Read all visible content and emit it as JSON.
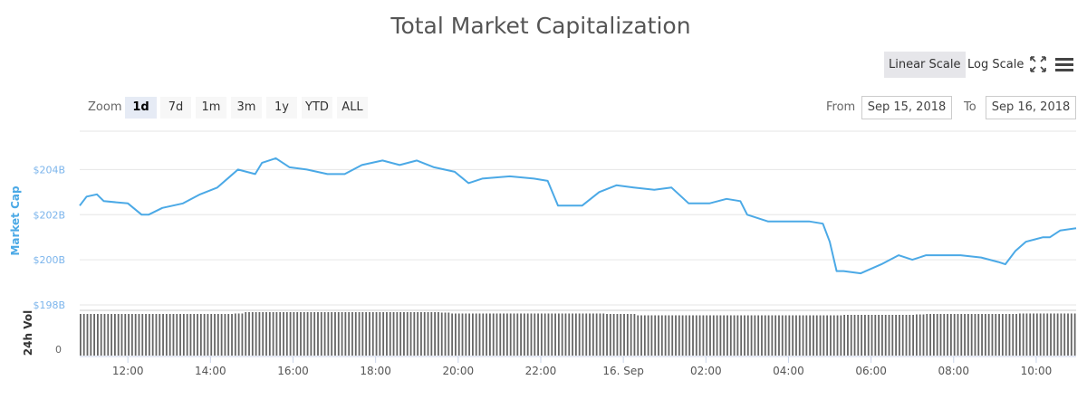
{
  "title": "Total Market Capitalization",
  "toolbar": {
    "linear_scale": "Linear Scale",
    "log_scale": "Log Scale",
    "fullscreen_icon": "fullscreen-icon",
    "menu_icon": "hamburger-menu-icon",
    "active_scale": "linear"
  },
  "zoom": {
    "label": "Zoom",
    "buttons": [
      "1d",
      "7d",
      "1m",
      "3m",
      "1y",
      "YTD",
      "ALL"
    ],
    "active": "1d"
  },
  "range": {
    "from_label": "From",
    "from_value": "Sep 15, 2018",
    "to_label": "To",
    "to_value": "Sep 16, 2018"
  },
  "chart_data": {
    "type": "line",
    "title": "Total Market Capitalization",
    "colors": {
      "line": "#4ba9e6",
      "volume": "#666666",
      "axis_label": "#4ba9e6"
    },
    "ylabel": "Market Cap",
    "y_ticks": [
      "$204B",
      "$202B",
      "$200B",
      "$198B"
    ],
    "y_tick_values": [
      204,
      202,
      200,
      198
    ],
    "ylim": [
      198,
      205.7
    ],
    "x_ticks": [
      "12:00",
      "14:00",
      "16:00",
      "18:00",
      "20:00",
      "22:00",
      "16. Sep",
      "02:00",
      "04:00",
      "06:00",
      "08:00",
      "10:00"
    ],
    "x_tick_times": [
      "2018-09-15 12:00",
      "2018-09-15 14:00",
      "2018-09-15 16:00",
      "2018-09-15 18:00",
      "2018-09-15 20:00",
      "2018-09-15 22:00",
      "2018-09-16 00:00",
      "2018-09-16 02:00",
      "2018-09-16 04:00",
      "2018-09-16 06:00",
      "2018-09-16 08:00",
      "2018-09-16 10:00"
    ],
    "xlim": [
      "2018-09-15 10:50",
      "2018-09-16 10:58"
    ],
    "grid": true,
    "series": [
      {
        "unit": "billion USD",
        "points": [
          [
            "2018-09-15 10:50",
            202.4
          ],
          [
            "2018-09-15 11:00",
            202.8
          ],
          [
            "2018-09-15 11:15",
            202.9
          ],
          [
            "2018-09-15 11:25",
            202.6
          ],
          [
            "2018-09-15 12:00",
            202.5
          ],
          [
            "2018-09-15 12:20",
            202.0
          ],
          [
            "2018-09-15 12:30",
            202.0
          ],
          [
            "2018-09-15 12:50",
            202.3
          ],
          [
            "2018-09-15 13:20",
            202.5
          ],
          [
            "2018-09-15 13:45",
            202.9
          ],
          [
            "2018-09-15 14:10",
            203.2
          ],
          [
            "2018-09-15 14:40",
            204.0
          ],
          [
            "2018-09-15 15:05",
            203.8
          ],
          [
            "2018-09-15 15:15",
            204.3
          ],
          [
            "2018-09-15 15:35",
            204.5
          ],
          [
            "2018-09-15 15:55",
            204.1
          ],
          [
            "2018-09-15 16:20",
            204.0
          ],
          [
            "2018-09-15 16:50",
            203.8
          ],
          [
            "2018-09-15 17:15",
            203.8
          ],
          [
            "2018-09-15 17:40",
            204.2
          ],
          [
            "2018-09-15 18:10",
            204.4
          ],
          [
            "2018-09-15 18:35",
            204.2
          ],
          [
            "2018-09-15 19:00",
            204.4
          ],
          [
            "2018-09-15 19:25",
            204.1
          ],
          [
            "2018-09-15 19:55",
            203.9
          ],
          [
            "2018-09-15 20:15",
            203.4
          ],
          [
            "2018-09-15 20:35",
            203.6
          ],
          [
            "2018-09-15 21:15",
            203.7
          ],
          [
            "2018-09-15 21:50",
            203.6
          ],
          [
            "2018-09-15 22:10",
            203.5
          ],
          [
            "2018-09-15 22:25",
            202.4
          ],
          [
            "2018-09-15 23:00",
            202.4
          ],
          [
            "2018-09-15 23:25",
            203.0
          ],
          [
            "2018-09-15 23:50",
            203.3
          ],
          [
            "2018-09-16 00:15",
            203.2
          ],
          [
            "2018-09-16 00:45",
            203.1
          ],
          [
            "2018-09-16 01:10",
            203.2
          ],
          [
            "2018-09-16 01:35",
            202.5
          ],
          [
            "2018-09-16 02:05",
            202.5
          ],
          [
            "2018-09-16 02:30",
            202.7
          ],
          [
            "2018-09-16 02:50",
            202.6
          ],
          [
            "2018-09-16 03:00",
            202.0
          ],
          [
            "2018-09-16 03:30",
            201.7
          ],
          [
            "2018-09-16 04:00",
            201.7
          ],
          [
            "2018-09-16 04:30",
            201.7
          ],
          [
            "2018-09-16 04:50",
            201.6
          ],
          [
            "2018-09-16 05:00",
            200.8
          ],
          [
            "2018-09-16 05:10",
            199.5
          ],
          [
            "2018-09-16 05:20",
            199.5
          ],
          [
            "2018-09-16 05:45",
            199.4
          ],
          [
            "2018-09-16 06:15",
            199.8
          ],
          [
            "2018-09-16 06:40",
            200.2
          ],
          [
            "2018-09-16 07:00",
            200.0
          ],
          [
            "2018-09-16 07:20",
            200.2
          ],
          [
            "2018-09-16 07:45",
            200.2
          ],
          [
            "2018-09-16 08:10",
            200.2
          ],
          [
            "2018-09-16 08:40",
            200.1
          ],
          [
            "2018-09-16 09:05",
            199.9
          ],
          [
            "2018-09-16 09:15",
            199.8
          ],
          [
            "2018-09-16 09:30",
            200.4
          ],
          [
            "2018-09-16 09:45",
            200.8
          ],
          [
            "2018-09-16 10:10",
            201.0
          ],
          [
            "2018-09-16 10:20",
            201.0
          ],
          [
            "2018-09-16 10:35",
            201.3
          ],
          [
            "2018-09-16 10:58",
            201.4
          ]
        ]
      }
    ],
    "volume": {
      "ylabel": "24h Vol",
      "y_ticks": [
        "0"
      ],
      "interval_minutes": 15,
      "start": "2018-09-15 10:50",
      "relative_levels": [
        0.92,
        0.92,
        0.92,
        0.92,
        0.92,
        0.92,
        0.92,
        0.92,
        0.92,
        0.92,
        0.92,
        0.92,
        0.92,
        0.92,
        0.92,
        0.93,
        0.96,
        0.96,
        0.96,
        0.96,
        0.96,
        0.96,
        0.96,
        0.96,
        0.96,
        0.96,
        0.96,
        0.96,
        0.96,
        0.96,
        0.96,
        0.96,
        0.96,
        0.96,
        0.96,
        0.95,
        0.93,
        0.93,
        0.93,
        0.93,
        0.93,
        0.93,
        0.93,
        0.93,
        0.93,
        0.93,
        0.93,
        0.93,
        0.93,
        0.93,
        0.93,
        0.92,
        0.92,
        0.92,
        0.89,
        0.89,
        0.89,
        0.89,
        0.89,
        0.89,
        0.89,
        0.89,
        0.89,
        0.89,
        0.89,
        0.89,
        0.89,
        0.89,
        0.89,
        0.89,
        0.89,
        0.89,
        0.89,
        0.89,
        0.9,
        0.9,
        0.9,
        0.9,
        0.9,
        0.9,
        0.9,
        0.91,
        0.92,
        0.92,
        0.92,
        0.92,
        0.92,
        0.92,
        0.92,
        0.92,
        0.92,
        0.93,
        0.93,
        0.93,
        0.93,
        0.93,
        0.93,
        0.93
      ]
    }
  }
}
